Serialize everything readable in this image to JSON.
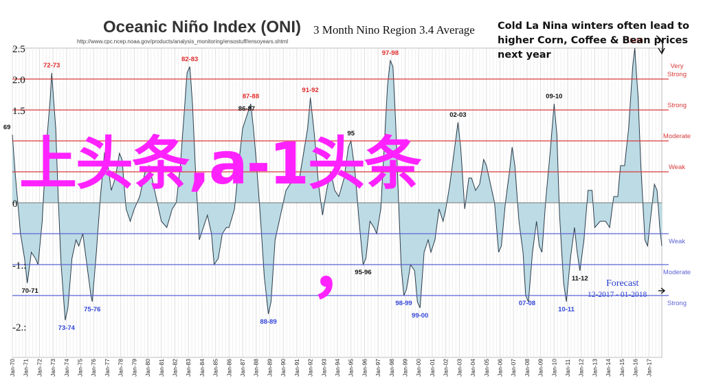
{
  "header": {
    "title": "Oceanic Niño Index (ONI)",
    "subtitle": "3 Month Nino Region 3.4 Average",
    "source_url": "http://www.cpc.ncep.noaa.gov/products/analysis_monitoring/ensostuff/ensoyears.shtml",
    "annotation": "Cold La Nina winters often lead to higher Corn, Coffee & Bean prices next year"
  },
  "overlay": {
    "text": "上头条,a-1头条",
    "comma": "，"
  },
  "forecast": {
    "label": "Forecast",
    "range": "12-2017 - 01-2018"
  },
  "colors": {
    "fill": "#bcdbe4",
    "line": "#2b3b4a",
    "elnino_threshold": "#d83a3a",
    "lanina_threshold": "#5b63d6",
    "overlay": "#ff22ff",
    "peak_red": "#e02a2a",
    "peak_blue": "#3245d8",
    "peak_black": "#111111"
  },
  "chart_data": {
    "type": "area",
    "title": "Oceanic Niño Index (ONI)",
    "subtitle": "3 Month Nino Region 3.4 Average",
    "xlabel": "",
    "ylabel": "",
    "ylim": [
      -2.5,
      2.5
    ],
    "yticks": [
      {
        "value": 2.5,
        "label": "2.5"
      },
      {
        "value": 2.0,
        "label": "2.0"
      },
      {
        "value": 1.5,
        "label": "1.5"
      },
      {
        "value": 0,
        "label": "0"
      },
      {
        "value": -1.0,
        "label": "-1.:"
      },
      {
        "value": -2.0,
        "label": "-2.:"
      }
    ],
    "x_labels": [
      "Jan-70",
      "Jan-71",
      "Jan-72",
      "Jan-73",
      "Jan-74",
      "Jan-75",
      "Jan-76",
      "Jan-77",
      "Jan-78",
      "Jan-79",
      "Jan-80",
      "Jan-81",
      "Jan-82",
      "Jan-83",
      "Jan-84",
      "Jan-85",
      "Jan-86",
      "Jan-87",
      "Jan-88",
      "Jan-89",
      "Jan-90",
      "Jan-91",
      "Jan-92",
      "Jan-93",
      "Jan-94",
      "Jan-95",
      "Jan-96",
      "Jan-97",
      "Jan-98",
      "Jan-99",
      "Jan-00",
      "Jan-01",
      "Jan-02",
      "Jan-03",
      "Jan-04",
      "Jan-05",
      "Jan-06",
      "Jan-07",
      "Jan-08",
      "Jan-09",
      "Jan-10",
      "Jan-11",
      "Jan-12",
      "Jan-13",
      "Jan-14",
      "Jan-15",
      "Jan-16",
      "Jan-17"
    ],
    "x_start": 1970.0,
    "x_end": 2017.95,
    "thresholds": [
      {
        "value": 2.0,
        "label": "Very Strong",
        "side": "warm"
      },
      {
        "value": 1.5,
        "label": "Strong",
        "side": "warm"
      },
      {
        "value": 1.0,
        "label": "Moderate",
        "side": "warm"
      },
      {
        "value": 0.5,
        "label": "Weak",
        "side": "warm"
      },
      {
        "value": -0.5,
        "label": "Weak",
        "side": "cold"
      },
      {
        "value": -1.0,
        "label": "Moderate",
        "side": "cold"
      },
      {
        "value": -1.5,
        "label": "Strong",
        "side": "cold"
      }
    ],
    "series": [
      {
        "points": [
          [
            1970.0,
            1.1
          ],
          [
            1970.2,
            0.5
          ],
          [
            1970.4,
            0.0
          ],
          [
            1970.6,
            -0.5
          ],
          [
            1970.9,
            -0.9
          ],
          [
            1971.1,
            -1.3
          ],
          [
            1971.4,
            -0.8
          ],
          [
            1971.7,
            -0.9
          ],
          [
            1971.9,
            -1.0
          ],
          [
            1972.2,
            -0.3
          ],
          [
            1972.5,
            0.9
          ],
          [
            1972.8,
            1.7
          ],
          [
            1972.9,
            2.1
          ],
          [
            1973.2,
            1.2
          ],
          [
            1973.4,
            0.0
          ],
          [
            1973.6,
            -1.0
          ],
          [
            1973.9,
            -1.9
          ],
          [
            1974.1,
            -1.7
          ],
          [
            1974.4,
            -0.9
          ],
          [
            1974.7,
            -0.6
          ],
          [
            1974.9,
            -0.7
          ],
          [
            1975.2,
            -0.5
          ],
          [
            1975.5,
            -1.0
          ],
          [
            1975.8,
            -1.5
          ],
          [
            1975.9,
            -1.6
          ],
          [
            1976.2,
            -0.8
          ],
          [
            1976.5,
            0.1
          ],
          [
            1976.8,
            0.8
          ],
          [
            1977.0,
            0.7
          ],
          [
            1977.3,
            0.2
          ],
          [
            1977.6,
            0.4
          ],
          [
            1977.9,
            0.8
          ],
          [
            1978.1,
            0.7
          ],
          [
            1978.4,
            -0.1
          ],
          [
            1978.7,
            -0.3
          ],
          [
            1979.0,
            -0.1
          ],
          [
            1979.4,
            0.1
          ],
          [
            1979.8,
            0.5
          ],
          [
            1980.1,
            0.6
          ],
          [
            1980.4,
            0.3
          ],
          [
            1980.7,
            0.0
          ],
          [
            1981.0,
            -0.3
          ],
          [
            1981.4,
            -0.4
          ],
          [
            1981.8,
            -0.1
          ],
          [
            1982.1,
            0.0
          ],
          [
            1982.4,
            0.6
          ],
          [
            1982.7,
            1.5
          ],
          [
            1982.9,
            2.1
          ],
          [
            1983.1,
            2.2
          ],
          [
            1983.3,
            1.6
          ],
          [
            1983.5,
            0.6
          ],
          [
            1983.8,
            -0.6
          ],
          [
            1984.1,
            -0.4
          ],
          [
            1984.4,
            -0.2
          ],
          [
            1984.7,
            -0.5
          ],
          [
            1984.9,
            -1.0
          ],
          [
            1985.2,
            -0.9
          ],
          [
            1985.5,
            -0.5
          ],
          [
            1985.8,
            -0.4
          ],
          [
            1986.0,
            -0.4
          ],
          [
            1986.4,
            -0.1
          ],
          [
            1986.8,
            0.8
          ],
          [
            1987.0,
            1.2
          ],
          [
            1987.3,
            1.4
          ],
          [
            1987.6,
            1.6
          ],
          [
            1987.8,
            1.2
          ],
          [
            1988.0,
            0.7
          ],
          [
            1988.3,
            -0.2
          ],
          [
            1988.6,
            -1.2
          ],
          [
            1988.9,
            -1.8
          ],
          [
            1989.1,
            -1.6
          ],
          [
            1989.4,
            -0.6
          ],
          [
            1989.7,
            -0.3
          ],
          [
            1989.9,
            -0.1
          ],
          [
            1990.2,
            0.2
          ],
          [
            1990.5,
            0.3
          ],
          [
            1990.9,
            0.4
          ],
          [
            1991.2,
            0.4
          ],
          [
            1991.5,
            0.8
          ],
          [
            1991.8,
            1.2
          ],
          [
            1992.0,
            1.7
          ],
          [
            1992.3,
            1.1
          ],
          [
            1992.6,
            0.3
          ],
          [
            1992.9,
            -0.2
          ],
          [
            1993.2,
            0.2
          ],
          [
            1993.5,
            0.5
          ],
          [
            1993.8,
            0.2
          ],
          [
            1994.1,
            0.1
          ],
          [
            1994.5,
            0.4
          ],
          [
            1994.8,
            0.9
          ],
          [
            1995.0,
            1.0
          ],
          [
            1995.3,
            0.5
          ],
          [
            1995.6,
            -0.3
          ],
          [
            1995.9,
            -1.0
          ],
          [
            1996.1,
            -0.9
          ],
          [
            1996.4,
            -0.3
          ],
          [
            1996.7,
            -0.4
          ],
          [
            1996.9,
            -0.5
          ],
          [
            1997.2,
            -0.1
          ],
          [
            1997.5,
            1.1
          ],
          [
            1997.7,
            1.9
          ],
          [
            1997.9,
            2.3
          ],
          [
            1998.1,
            2.2
          ],
          [
            1998.3,
            1.3
          ],
          [
            1998.5,
            0.1
          ],
          [
            1998.7,
            -1.0
          ],
          [
            1998.9,
            -1.5
          ],
          [
            1999.1,
            -1.4
          ],
          [
            1999.4,
            -1.0
          ],
          [
            1999.7,
            -1.1
          ],
          [
            1999.9,
            -1.6
          ],
          [
            2000.1,
            -1.7
          ],
          [
            2000.4,
            -0.8
          ],
          [
            2000.7,
            -0.6
          ],
          [
            2000.9,
            -0.8
          ],
          [
            2001.2,
            -0.6
          ],
          [
            2001.5,
            -0.1
          ],
          [
            2001.8,
            -0.3
          ],
          [
            2002.0,
            -0.1
          ],
          [
            2002.3,
            0.3
          ],
          [
            2002.6,
            0.8
          ],
          [
            2002.9,
            1.3
          ],
          [
            2003.1,
            0.9
          ],
          [
            2003.4,
            -0.1
          ],
          [
            2003.7,
            0.4
          ],
          [
            2003.9,
            0.4
          ],
          [
            2004.2,
            0.2
          ],
          [
            2004.5,
            0.3
          ],
          [
            2004.8,
            0.7
          ],
          [
            2005.0,
            0.6
          ],
          [
            2005.3,
            0.3
          ],
          [
            2005.6,
            0.0
          ],
          [
            2005.9,
            -0.8
          ],
          [
            2006.1,
            -0.7
          ],
          [
            2006.4,
            0.0
          ],
          [
            2006.7,
            0.5
          ],
          [
            2006.9,
            0.9
          ],
          [
            2007.1,
            0.6
          ],
          [
            2007.4,
            -0.3
          ],
          [
            2007.7,
            -0.8
          ],
          [
            2007.9,
            -1.5
          ],
          [
            2008.1,
            -1.6
          ],
          [
            2008.4,
            -0.8
          ],
          [
            2008.7,
            -0.3
          ],
          [
            2008.9,
            -0.7
          ],
          [
            2009.1,
            -0.8
          ],
          [
            2009.4,
            0.1
          ],
          [
            2009.7,
            0.8
          ],
          [
            2010.0,
            1.6
          ],
          [
            2010.2,
            1.1
          ],
          [
            2010.4,
            -0.2
          ],
          [
            2010.7,
            -1.3
          ],
          [
            2010.9,
            -1.6
          ],
          [
            2011.2,
            -0.9
          ],
          [
            2011.5,
            -0.4
          ],
          [
            2011.7,
            -0.8
          ],
          [
            2011.9,
            -1.1
          ],
          [
            2012.2,
            -0.6
          ],
          [
            2012.5,
            0.2
          ],
          [
            2012.8,
            0.2
          ],
          [
            2013.0,
            -0.4
          ],
          [
            2013.4,
            -0.3
          ],
          [
            2013.8,
            -0.3
          ],
          [
            2014.1,
            -0.4
          ],
          [
            2014.4,
            0.1
          ],
          [
            2014.7,
            0.1
          ],
          [
            2014.9,
            0.6
          ],
          [
            2015.2,
            0.6
          ],
          [
            2015.5,
            1.2
          ],
          [
            2015.8,
            2.2
          ],
          [
            2015.95,
            2.5
          ],
          [
            2016.2,
            1.7
          ],
          [
            2016.4,
            0.6
          ],
          [
            2016.7,
            -0.6
          ],
          [
            2016.9,
            -0.7
          ],
          [
            2017.1,
            -0.3
          ],
          [
            2017.4,
            0.3
          ],
          [
            2017.6,
            0.2
          ],
          [
            2017.8,
            -0.4
          ],
          [
            2017.95,
            -0.7
          ]
        ]
      }
    ],
    "peaks": [
      {
        "label": "69",
        "x": 1969.6,
        "y": 1.1,
        "color": "black"
      },
      {
        "label": "70-71",
        "x": 1971.3,
        "y": -1.3,
        "color": "black"
      },
      {
        "label": "72-73",
        "x": 1972.9,
        "y": 2.1,
        "color": "red"
      },
      {
        "label": "73-74",
        "x": 1974.0,
        "y": -1.9,
        "color": "blue"
      },
      {
        "label": "75-76",
        "x": 1975.9,
        "y": -1.6,
        "color": "blue"
      },
      {
        "label": "82-83",
        "x": 1983.1,
        "y": 2.2,
        "color": "red"
      },
      {
        "label": "86-87",
        "x": 1987.3,
        "y": 1.4,
        "color": "black"
      },
      {
        "label": "87-88",
        "x": 1987.6,
        "y": 1.6,
        "color": "red"
      },
      {
        "label": "88-89",
        "x": 1988.9,
        "y": -1.8,
        "color": "blue"
      },
      {
        "label": "91-92",
        "x": 1992.0,
        "y": 1.7,
        "color": "red"
      },
      {
        "label": "95",
        "x": 1995.0,
        "y": 1.0,
        "color": "black"
      },
      {
        "label": "95-96",
        "x": 1995.9,
        "y": -1.0,
        "color": "black"
      },
      {
        "label": "97-98",
        "x": 1997.9,
        "y": 2.3,
        "color": "red"
      },
      {
        "label": "98-99",
        "x": 1998.9,
        "y": -1.5,
        "color": "blue"
      },
      {
        "label": "99-00",
        "x": 2000.1,
        "y": -1.7,
        "color": "blue"
      },
      {
        "label": "02-03",
        "x": 2002.9,
        "y": 1.3,
        "color": "black"
      },
      {
        "label": "07-08",
        "x": 2008.0,
        "y": -1.5,
        "color": "blue"
      },
      {
        "label": "09-10",
        "x": 2010.0,
        "y": 1.6,
        "color": "black"
      },
      {
        "label": "10-11",
        "x": 2010.9,
        "y": -1.6,
        "color": "blue"
      },
      {
        "label": "11-12",
        "x": 2011.9,
        "y": -1.1,
        "color": "black"
      },
      {
        "label": "15-16",
        "x": 2015.95,
        "y": 2.5,
        "color": "red"
      }
    ],
    "grid": true,
    "legend": "none"
  }
}
